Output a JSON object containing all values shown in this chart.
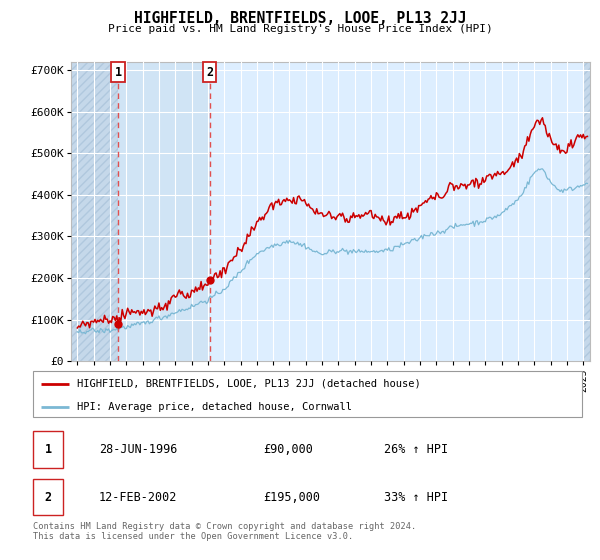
{
  "title": "HIGHFIELD, BRENTFIELDS, LOOE, PL13 2JJ",
  "subtitle": "Price paid vs. HM Land Registry's House Price Index (HPI)",
  "legend_line1": "HIGHFIELD, BRENTFIELDS, LOOE, PL13 2JJ (detached house)",
  "legend_line2": "HPI: Average price, detached house, Cornwall",
  "sale1_date": "28-JUN-1996",
  "sale1_price": "£90,000",
  "sale1_hpi": "26% ↑ HPI",
  "sale1_year": 1996.5,
  "sale1_value": 90000,
  "sale2_date": "12-FEB-2002",
  "sale2_price": "£195,000",
  "sale2_hpi": "33% ↑ HPI",
  "sale2_year": 2002.1,
  "sale2_value": 195000,
  "hpi_color": "#7bb8d4",
  "price_color": "#cc0000",
  "marker_color": "#cc0000",
  "vline_color": "#e05050",
  "background_plot": "#ddeeff",
  "hatch_color": "#c5d8ea",
  "shade_between_color": "#d0e4f5",
  "ylim": [
    0,
    720000
  ],
  "yticks": [
    0,
    100000,
    200000,
    300000,
    400000,
    500000,
    600000,
    700000
  ],
  "xlim_start": 1993.6,
  "xlim_end": 2025.4,
  "footer": "Contains HM Land Registry data © Crown copyright and database right 2024.\nThis data is licensed under the Open Government Licence v3.0."
}
